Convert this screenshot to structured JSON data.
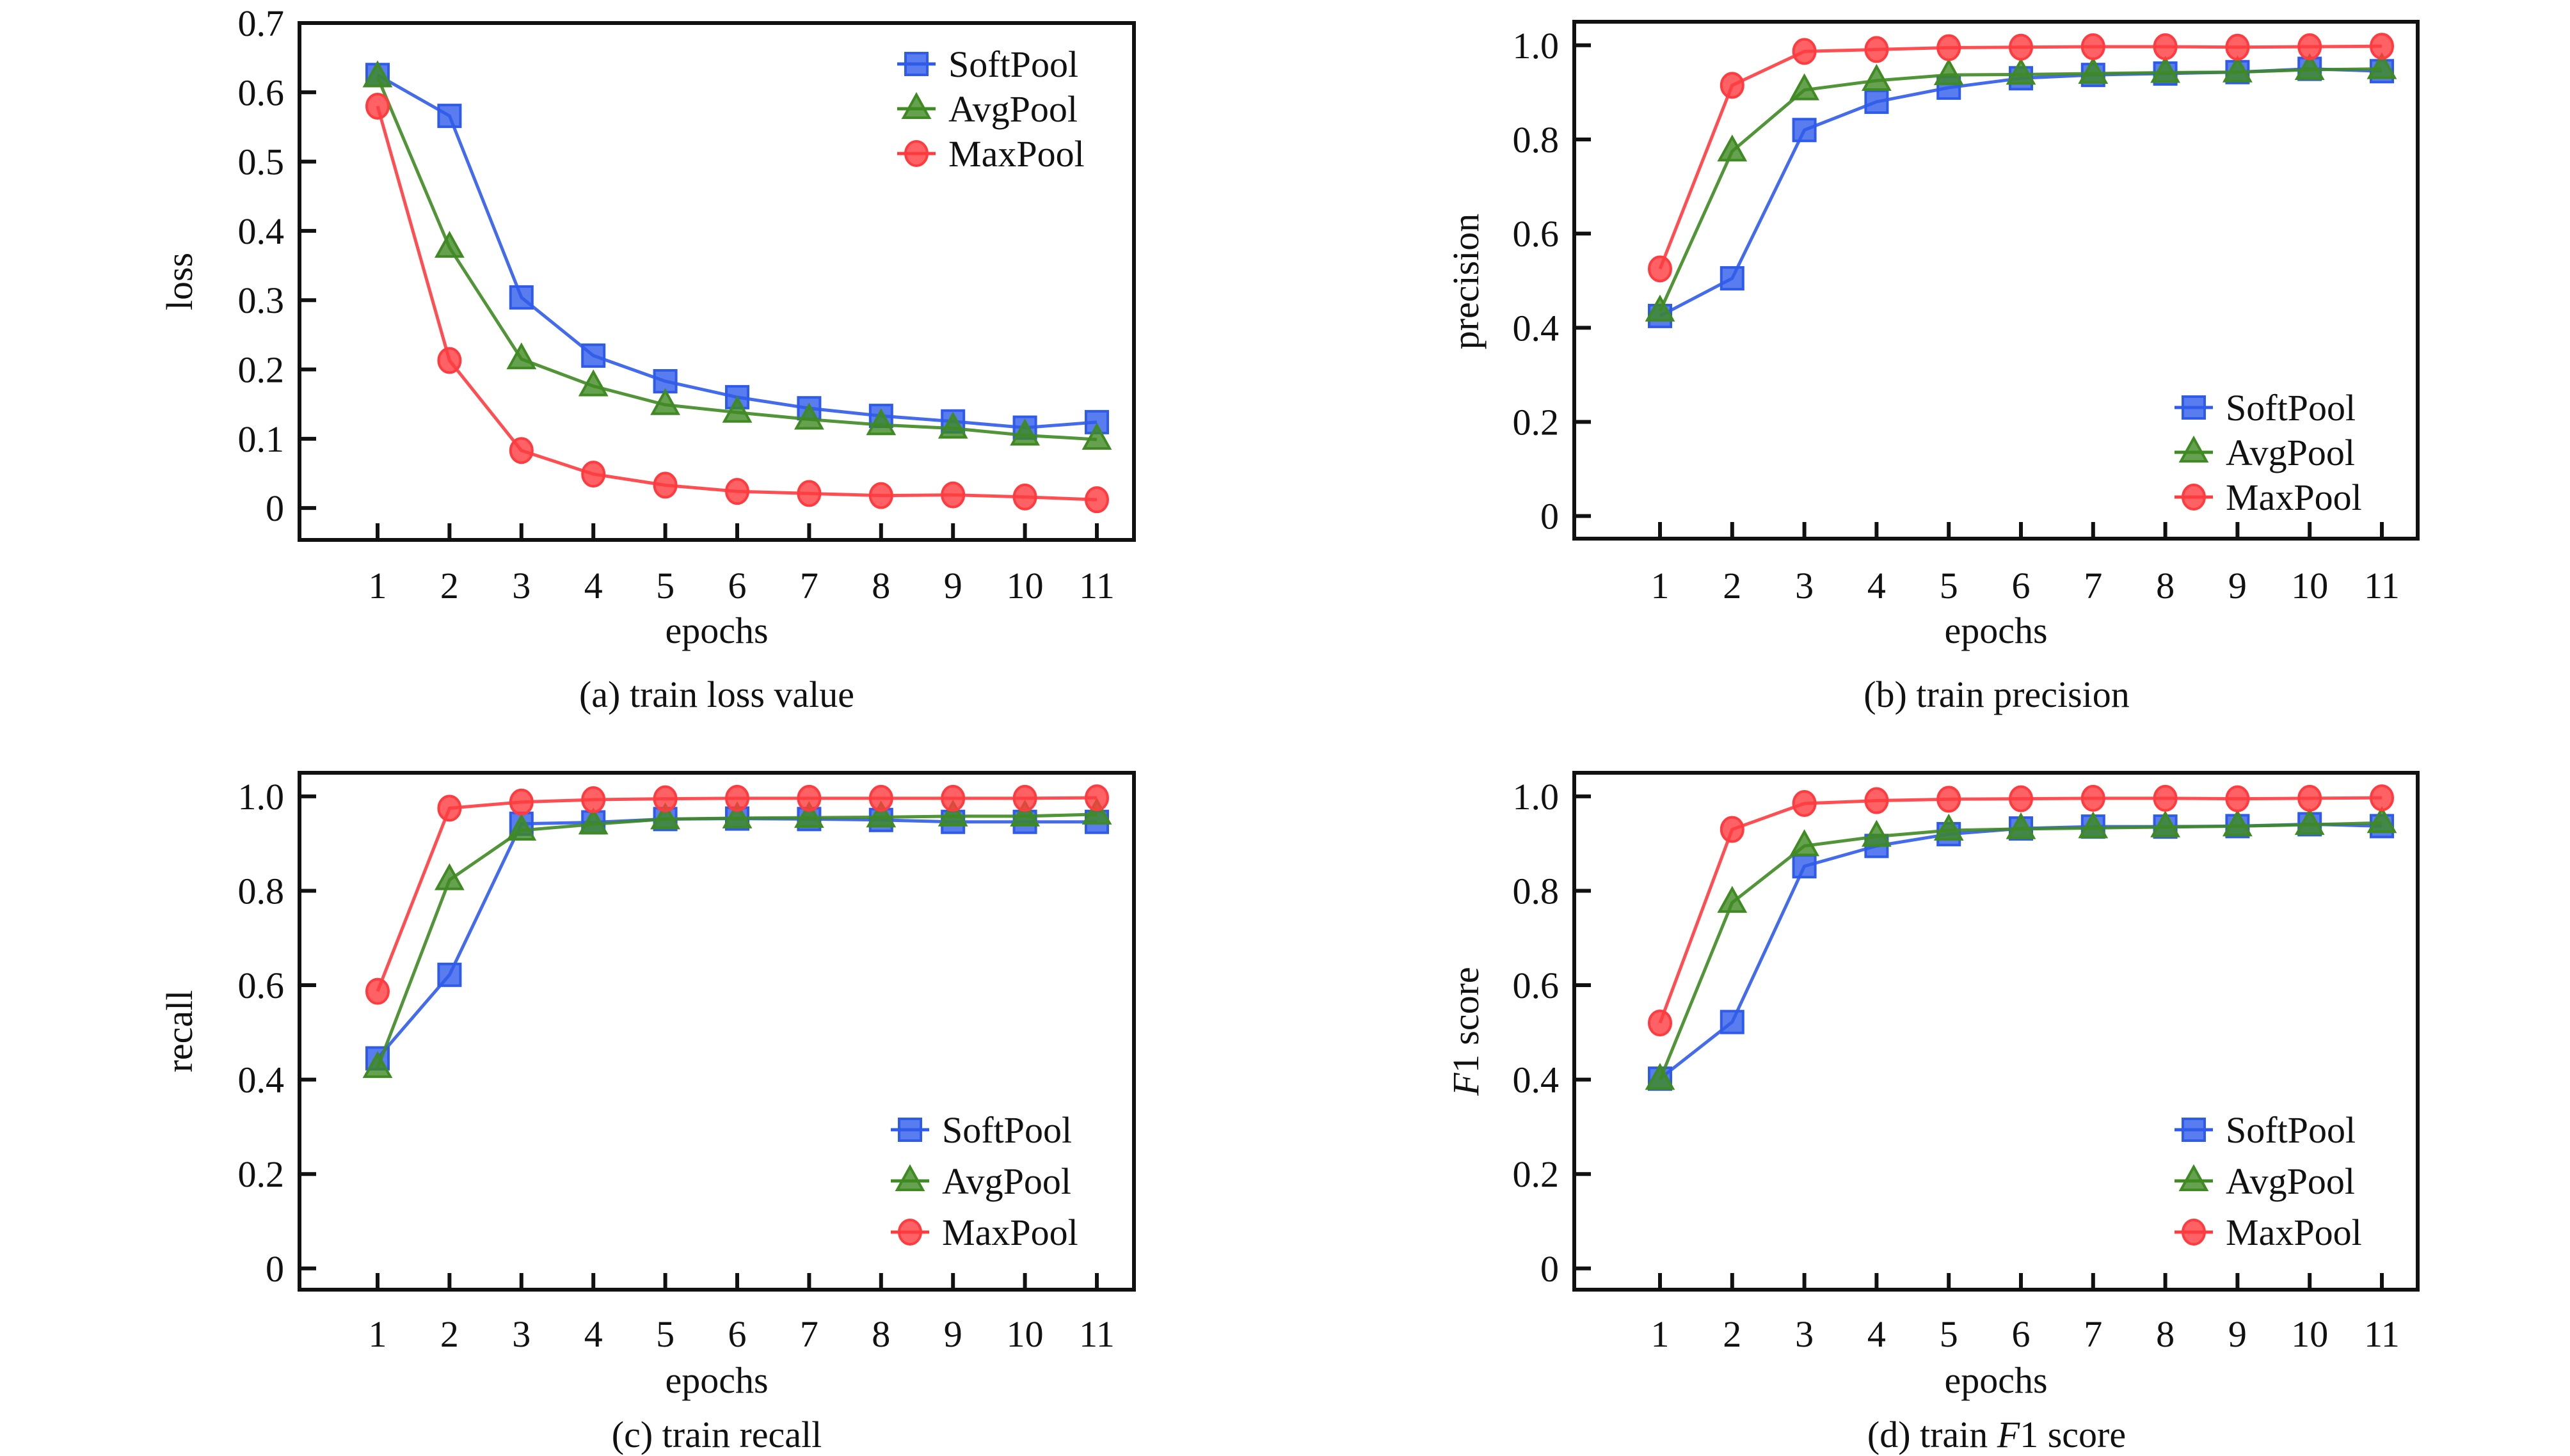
{
  "colors": {
    "SoftPool": "#2f5bea",
    "AvgPool": "#3f8a22",
    "MaxPool": "#ff3b3f",
    "axis": "#111111",
    "background": "#ffffff"
  },
  "chart_data": [
    {
      "id": "a",
      "type": "line",
      "caption": "(a) train loss value",
      "xlabel": "epochs",
      "ylabel": "loss",
      "ylabel_italic_prefix": "",
      "x": [
        1,
        2,
        3,
        4,
        5,
        6,
        7,
        8,
        9,
        10,
        11
      ],
      "xticks": [
        "1",
        "2",
        "3",
        "4",
        "5",
        "6",
        "7",
        "8",
        "9",
        "10",
        "11"
      ],
      "yticks": [
        0,
        0.1,
        0.2,
        0.3,
        0.4,
        0.5,
        0.6,
        0.7
      ],
      "ytick_labels": [
        "0",
        "0.1",
        "0.2",
        "0.3",
        "0.4",
        "0.5",
        "0.6",
        "0.7"
      ],
      "ylim": [
        -0.05,
        0.7
      ],
      "legend_position": "top-right",
      "grid": false,
      "series": [
        {
          "name": "SoftPool",
          "marker": "square",
          "values": [
            0.625,
            0.566,
            0.304,
            0.22,
            0.183,
            0.16,
            0.144,
            0.133,
            0.125,
            0.116,
            0.124
          ]
        },
        {
          "name": "AvgPool",
          "marker": "triangle",
          "values": [
            0.622,
            0.376,
            0.215,
            0.176,
            0.149,
            0.138,
            0.128,
            0.12,
            0.115,
            0.105,
            0.099
          ]
        },
        {
          "name": "MaxPool",
          "marker": "circle",
          "values": [
            0.58,
            0.213,
            0.083,
            0.049,
            0.033,
            0.024,
            0.021,
            0.018,
            0.019,
            0.016,
            0.012
          ]
        }
      ]
    },
    {
      "id": "b",
      "type": "line",
      "caption": "(b) train precision",
      "xlabel": "epochs",
      "ylabel": "precision",
      "ylabel_italic_prefix": "",
      "x": [
        1,
        2,
        3,
        4,
        5,
        6,
        7,
        8,
        9,
        10,
        11
      ],
      "xticks": [
        "1",
        "2",
        "3",
        "4",
        "5",
        "6",
        "7",
        "8",
        "9",
        "10",
        "11"
      ],
      "yticks": [
        0,
        0.2,
        0.4,
        0.6,
        0.8,
        1.0
      ],
      "ytick_labels": [
        "0",
        "0.2",
        "0.4",
        "0.6",
        "0.8",
        "1.0"
      ],
      "ylim": [
        -0.05,
        1.05
      ],
      "legend_position": "bottom-right",
      "grid": false,
      "series": [
        {
          "name": "SoftPool",
          "marker": "square",
          "values": [
            0.425,
            0.505,
            0.82,
            0.88,
            0.91,
            0.93,
            0.937,
            0.94,
            0.943,
            0.95,
            0.945
          ]
        },
        {
          "name": "AvgPool",
          "marker": "triangle",
          "values": [
            0.435,
            0.775,
            0.905,
            0.925,
            0.937,
            0.938,
            0.94,
            0.942,
            0.943,
            0.948,
            0.95
          ]
        },
        {
          "name": "MaxPool",
          "marker": "circle",
          "values": [
            0.525,
            0.915,
            0.987,
            0.991,
            0.995,
            0.996,
            0.997,
            0.997,
            0.996,
            0.997,
            0.998
          ]
        }
      ]
    },
    {
      "id": "c",
      "type": "line",
      "caption": "(c) train recall",
      "xlabel": "epochs",
      "ylabel": "recall",
      "ylabel_italic_prefix": "",
      "x": [
        1,
        2,
        3,
        4,
        5,
        6,
        7,
        8,
        9,
        10,
        11
      ],
      "xticks": [
        "1",
        "2",
        "3",
        "4",
        "5",
        "6",
        "7",
        "8",
        "9",
        "10",
        "11"
      ],
      "yticks": [
        0,
        0.2,
        0.4,
        0.6,
        0.8,
        1.0
      ],
      "ytick_labels": [
        "0",
        "0.2",
        "0.4",
        "0.6",
        "0.8",
        "1.0"
      ],
      "ylim": [
        -0.05,
        1.05
      ],
      "legend_position": "bottom-right",
      "grid": false,
      "series": [
        {
          "name": "SoftPool",
          "marker": "square",
          "values": [
            0.445,
            0.622,
            0.942,
            0.945,
            0.952,
            0.953,
            0.952,
            0.95,
            0.946,
            0.946,
            0.946
          ]
        },
        {
          "name": "AvgPool",
          "marker": "triangle",
          "values": [
            0.425,
            0.823,
            0.928,
            0.941,
            0.952,
            0.954,
            0.955,
            0.956,
            0.958,
            0.958,
            0.962
          ]
        },
        {
          "name": "MaxPool",
          "marker": "circle",
          "values": [
            0.587,
            0.975,
            0.988,
            0.993,
            0.995,
            0.996,
            0.996,
            0.996,
            0.996,
            0.996,
            0.997
          ]
        }
      ]
    },
    {
      "id": "d",
      "type": "line",
      "caption_prefix": "(d) train ",
      "caption_italic": "F",
      "caption_suffix": "1 score",
      "caption": "(d) train F1 score",
      "xlabel": "epochs",
      "ylabel": "1 score",
      "ylabel_italic_prefix": "F",
      "x": [
        1,
        2,
        3,
        4,
        5,
        6,
        7,
        8,
        9,
        10,
        11
      ],
      "xticks": [
        "1",
        "2",
        "3",
        "4",
        "5",
        "6",
        "7",
        "8",
        "9",
        "10",
        "11"
      ],
      "yticks": [
        0,
        0.2,
        0.4,
        0.6,
        0.8,
        1.0
      ],
      "ytick_labels": [
        "0",
        "0.2",
        "0.4",
        "0.6",
        "0.8",
        "1.0"
      ],
      "ylim": [
        -0.05,
        1.05
      ],
      "legend_position": "bottom-right",
      "grid": false,
      "series": [
        {
          "name": "SoftPool",
          "marker": "square",
          "values": [
            0.402,
            0.522,
            0.852,
            0.895,
            0.92,
            0.932,
            0.936,
            0.936,
            0.937,
            0.941,
            0.937
          ]
        },
        {
          "name": "AvgPool",
          "marker": "triangle",
          "values": [
            0.4,
            0.775,
            0.895,
            0.915,
            0.928,
            0.931,
            0.933,
            0.935,
            0.937,
            0.94,
            0.944
          ]
        },
        {
          "name": "MaxPool",
          "marker": "circle",
          "values": [
            0.52,
            0.93,
            0.985,
            0.991,
            0.994,
            0.995,
            0.996,
            0.996,
            0.995,
            0.996,
            0.997
          ]
        }
      ]
    }
  ]
}
